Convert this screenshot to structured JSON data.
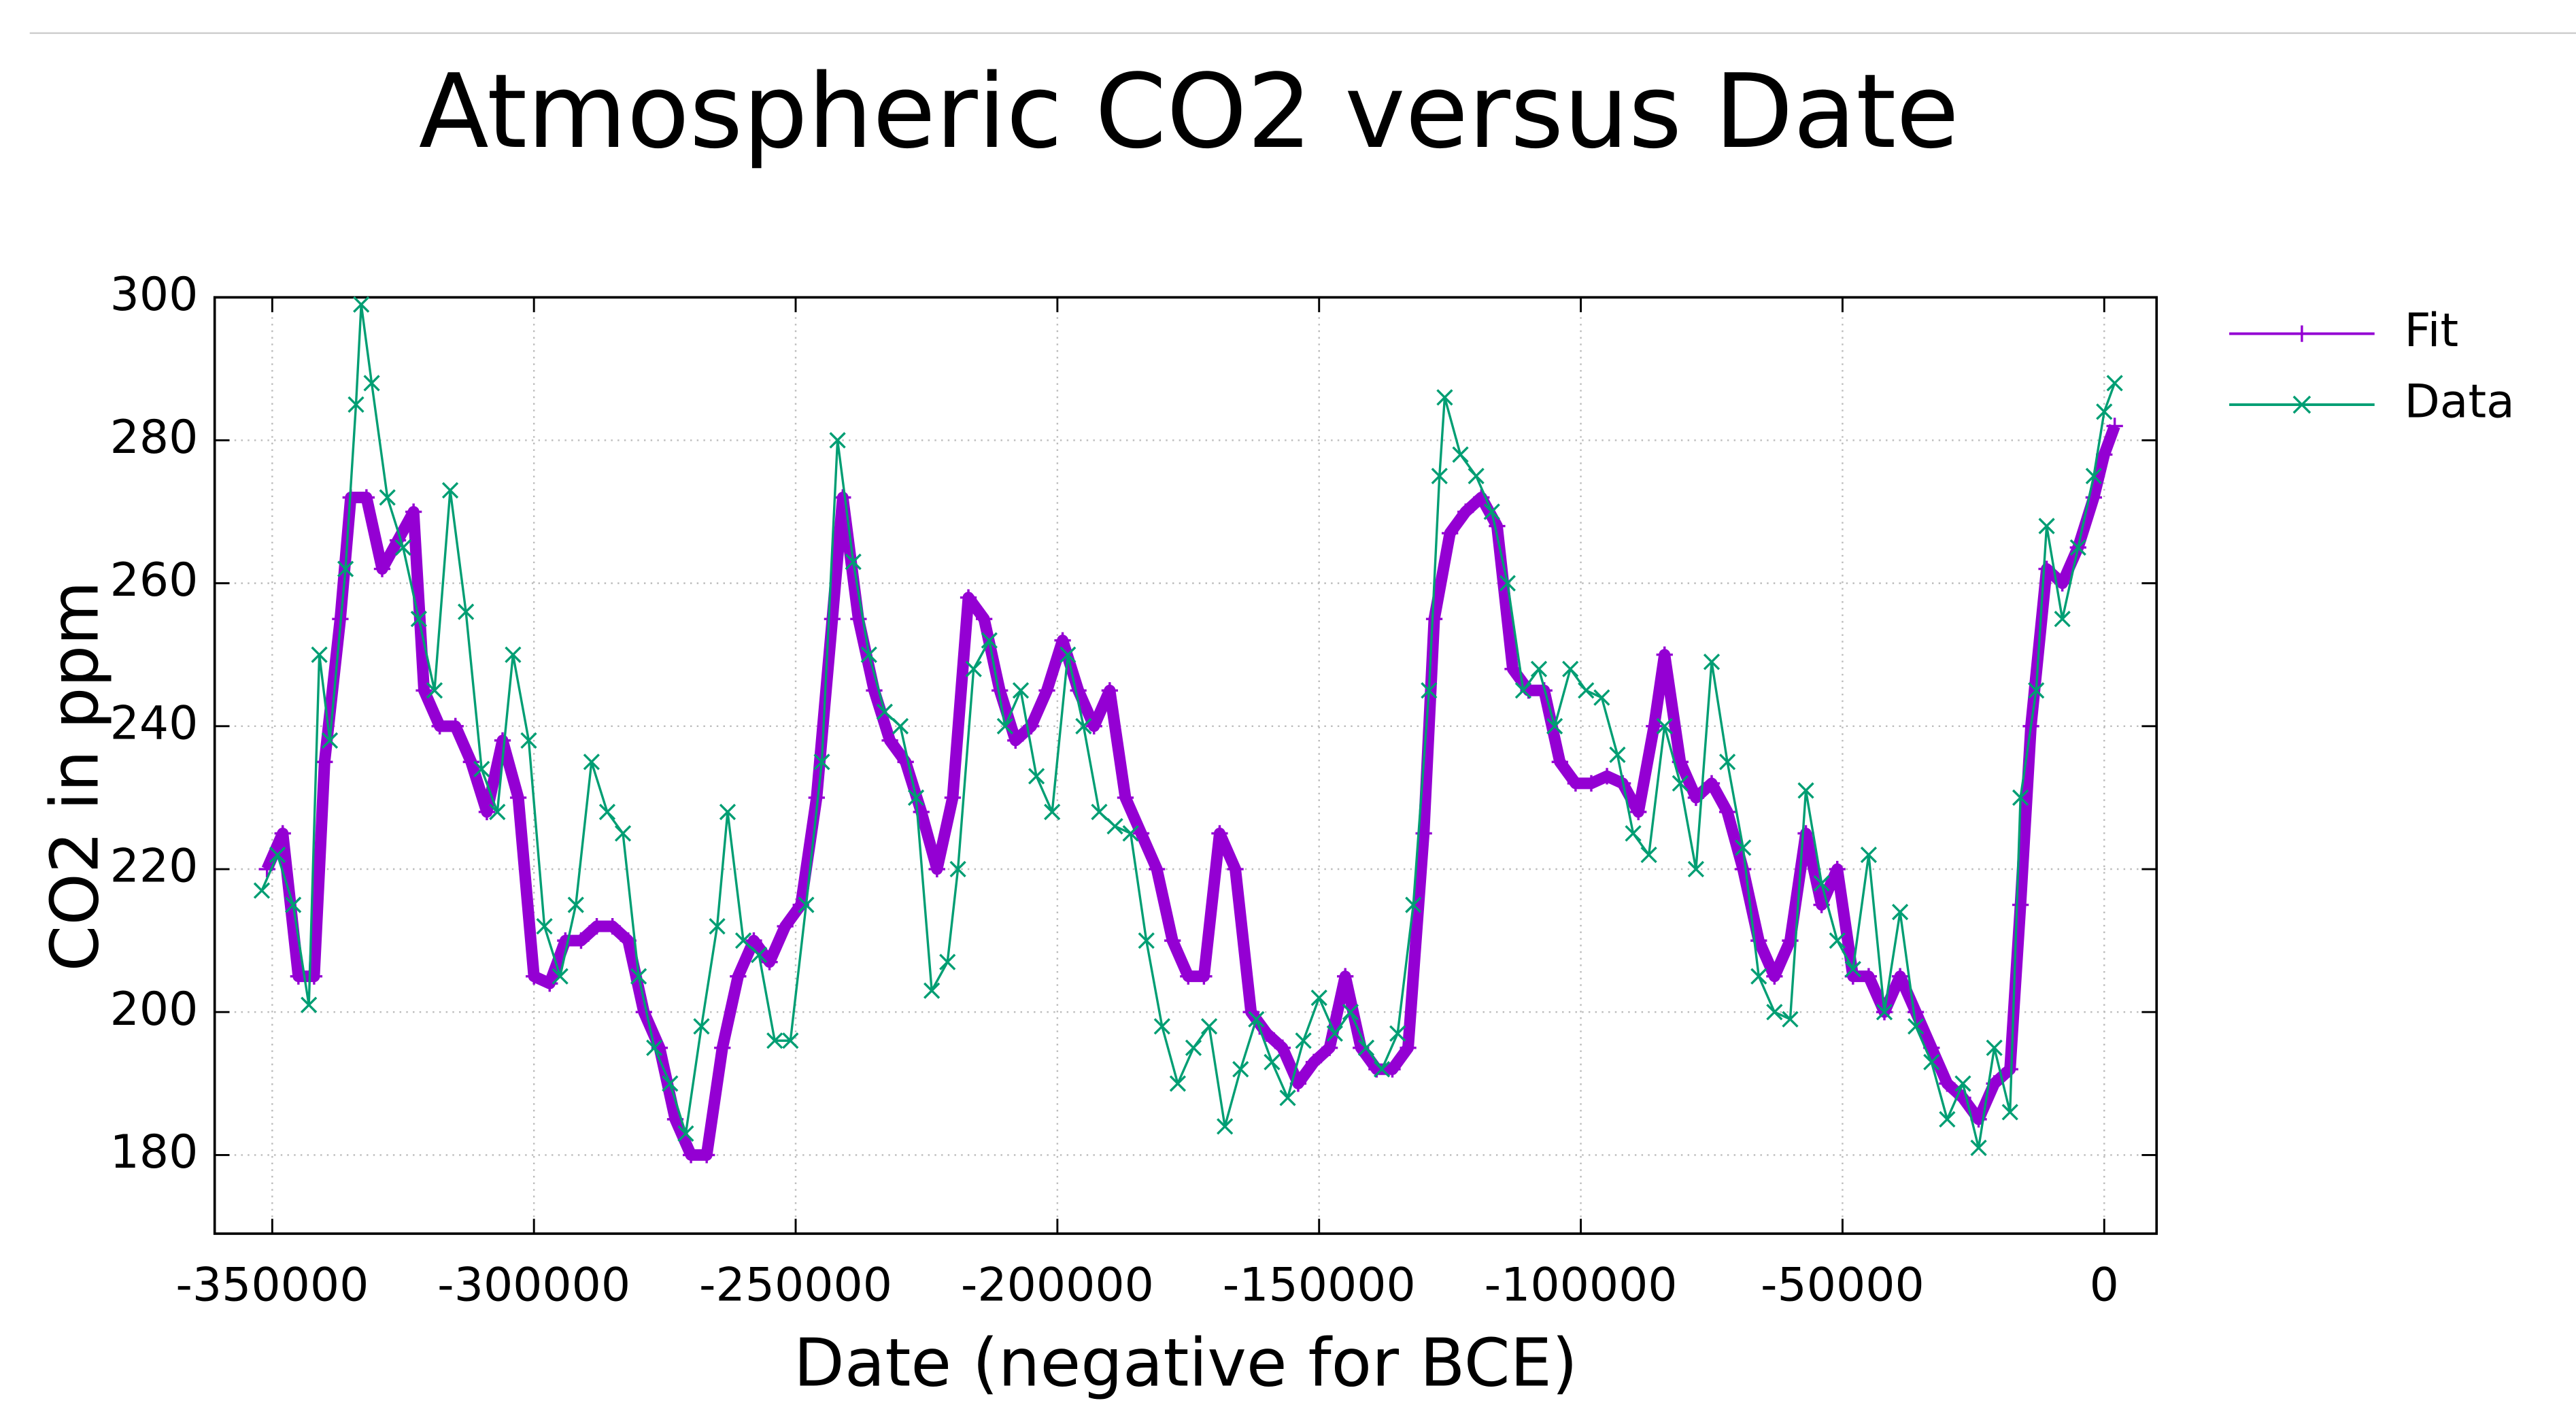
{
  "chart_data": {
    "type": "line",
    "title": "Atmospheric CO2 versus Date",
    "x_label": "Date (negative for BCE)",
    "y_label": "CO2 in ppm",
    "xlim": [
      -361000,
      10000
    ],
    "ylim": [
      169,
      300
    ],
    "xticks": [
      -350000,
      -300000,
      -250000,
      -200000,
      -150000,
      -100000,
      -50000,
      0
    ],
    "yticks": [
      180,
      200,
      220,
      240,
      260,
      280,
      300
    ],
    "grid": true,
    "legend": "outside-top-right",
    "series": [
      {
        "name": "Fit",
        "color": "#9400d3",
        "marker": "plus",
        "x": [
          -351000,
          -348000,
          -345000,
          -342000,
          -340000,
          -337000,
          -335000,
          -332000,
          -329000,
          -326000,
          -323000,
          -321000,
          -318000,
          -315000,
          -312000,
          -309000,
          -306000,
          -303000,
          -300000,
          -297000,
          -294000,
          -291000,
          -288000,
          -285000,
          -282000,
          -279000,
          -276000,
          -273000,
          -270000,
          -267000,
          -264000,
          -261000,
          -258000,
          -255000,
          -252000,
          -249000,
          -246000,
          -243000,
          -241000,
          -238000,
          -235000,
          -232000,
          -229000,
          -226000,
          -223000,
          -220000,
          -217000,
          -214000,
          -211000,
          -208000,
          -205000,
          -202000,
          -199000,
          -196000,
          -193000,
          -190000,
          -187000,
          -184000,
          -181000,
          -178000,
          -175000,
          -172000,
          -169000,
          -166000,
          -163000,
          -160000,
          -157000,
          -154000,
          -151000,
          -148000,
          -145000,
          -142000,
          -139000,
          -136000,
          -133000,
          -130000,
          -128000,
          -125000,
          -122000,
          -119000,
          -116000,
          -113000,
          -110000,
          -107000,
          -104000,
          -101000,
          -98000,
          -95000,
          -92000,
          -89000,
          -86000,
          -84000,
          -81000,
          -78000,
          -75000,
          -72000,
          -69000,
          -66000,
          -63000,
          -60000,
          -57000,
          -54000,
          -51000,
          -48000,
          -45000,
          -42000,
          -39000,
          -36000,
          -33000,
          -30000,
          -27000,
          -24000,
          -21000,
          -18000,
          -16000,
          -14000,
          -11000,
          -8000,
          -5000,
          -2000,
          0,
          2000
        ],
        "values": [
          220,
          225,
          205,
          205,
          235,
          255,
          272,
          272,
          262,
          266,
          270,
          245,
          240,
          240,
          235,
          228,
          238,
          230,
          205,
          204,
          210,
          210,
          212,
          212,
          210,
          200,
          195,
          185,
          180,
          180,
          195,
          205,
          210,
          207,
          212,
          215,
          230,
          255,
          272,
          255,
          245,
          238,
          235,
          228,
          220,
          230,
          258,
          255,
          245,
          238,
          240,
          245,
          252,
          245,
          240,
          245,
          230,
          225,
          220,
          210,
          205,
          205,
          225,
          220,
          200,
          197,
          195,
          190,
          193,
          195,
          205,
          195,
          192,
          192,
          195,
          225,
          255,
          267,
          270,
          272,
          268,
          248,
          245,
          245,
          235,
          232,
          232,
          233,
          232,
          228,
          240,
          250,
          235,
          230,
          232,
          228,
          220,
          210,
          205,
          210,
          225,
          215,
          220,
          205,
          205,
          200,
          205,
          200,
          195,
          190,
          188,
          185,
          190,
          192,
          215,
          240,
          262,
          260,
          265,
          272,
          278,
          282
        ]
      },
      {
        "name": "Data",
        "color": "#009e73",
        "marker": "cross",
        "x": [
          -352000,
          -349000,
          -346000,
          -343000,
          -341000,
          -339000,
          -336000,
          -334000,
          -333000,
          -331000,
          -328000,
          -325000,
          -322000,
          -319000,
          -316000,
          -313000,
          -310000,
          -307000,
          -304000,
          -301000,
          -298000,
          -295000,
          -292000,
          -289000,
          -286000,
          -283000,
          -280000,
          -277000,
          -274000,
          -271000,
          -268000,
          -265000,
          -263000,
          -260000,
          -257000,
          -254000,
          -251000,
          -248000,
          -245000,
          -242000,
          -239000,
          -236000,
          -233000,
          -230000,
          -227000,
          -224000,
          -221000,
          -219000,
          -216000,
          -213000,
          -210000,
          -207000,
          -204000,
          -201000,
          -198000,
          -195000,
          -192000,
          -189000,
          -186000,
          -183000,
          -180000,
          -177000,
          -174000,
          -171000,
          -168000,
          -165000,
          -162000,
          -159000,
          -156000,
          -153000,
          -150000,
          -147000,
          -144000,
          -141000,
          -138000,
          -135000,
          -132000,
          -129000,
          -127000,
          -126000,
          -123000,
          -120000,
          -117000,
          -114000,
          -111000,
          -108000,
          -105000,
          -102000,
          -99000,
          -96000,
          -93000,
          -90000,
          -87000,
          -84000,
          -81000,
          -78000,
          -75000,
          -72000,
          -69000,
          -66000,
          -63000,
          -60000,
          -57000,
          -54000,
          -51000,
          -48000,
          -45000,
          -42000,
          -39000,
          -36000,
          -33000,
          -30000,
          -27000,
          -24000,
          -21000,
          -18000,
          -16000,
          -13000,
          -11000,
          -8000,
          -5000,
          -2000,
          0,
          2000
        ],
        "values": [
          217,
          222,
          215,
          201,
          250,
          238,
          262,
          285,
          299,
          288,
          272,
          265,
          255,
          245,
          273,
          256,
          234,
          228,
          250,
          238,
          212,
          205,
          215,
          235,
          228,
          225,
          205,
          195,
          190,
          183,
          198,
          212,
          228,
          210,
          208,
          196,
          196,
          215,
          235,
          280,
          263,
          250,
          242,
          240,
          230,
          203,
          207,
          220,
          248,
          252,
          240,
          245,
          233,
          228,
          250,
          240,
          228,
          226,
          225,
          210,
          198,
          190,
          195,
          198,
          184,
          192,
          199,
          193,
          188,
          196,
          202,
          197,
          200,
          195,
          192,
          197,
          215,
          245,
          275,
          286,
          278,
          275,
          270,
          260,
          245,
          248,
          240,
          248,
          245,
          244,
          236,
          225,
          222,
          240,
          232,
          220,
          249,
          235,
          223,
          205,
          200,
          199,
          231,
          218,
          210,
          206,
          222,
          200,
          214,
          198,
          193,
          185,
          190,
          181,
          195,
          186,
          230,
          245,
          268,
          255,
          265,
          275,
          284,
          288
        ]
      }
    ]
  }
}
